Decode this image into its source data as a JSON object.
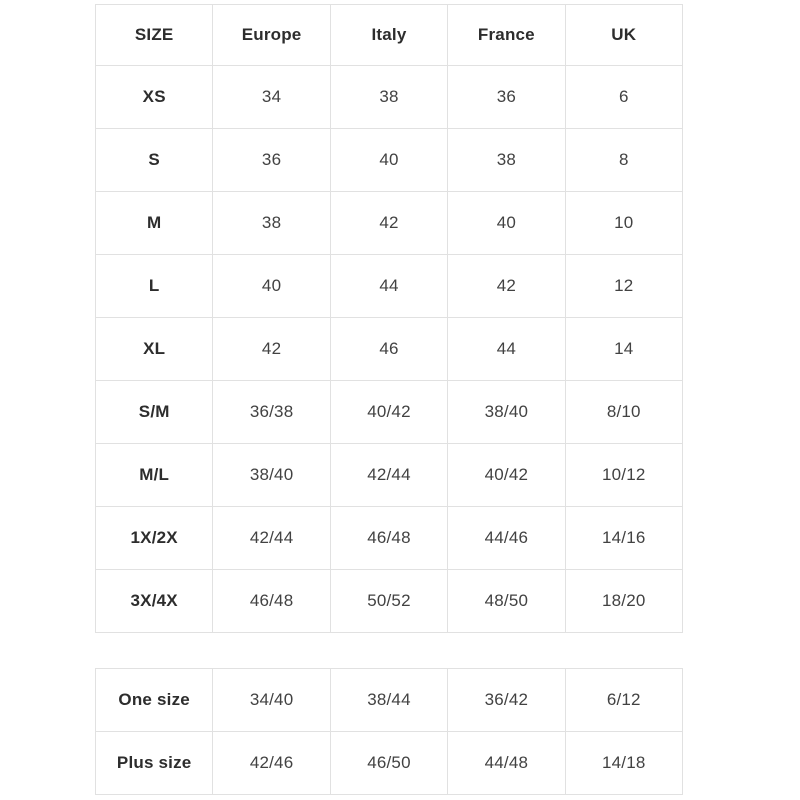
{
  "colors": {
    "background": "#ffffff",
    "border": "#e1e1e1",
    "header_text": "#2d2d2d",
    "value_text": "#424242"
  },
  "tables": [
    {
      "name": "size-conversion-table",
      "has_header": true,
      "columns": [
        "SIZE",
        "Europe",
        "Italy",
        "France",
        "UK"
      ],
      "rows": [
        [
          "XS",
          "34",
          "38",
          "36",
          "6"
        ],
        [
          "S",
          "36",
          "40",
          "38",
          "8"
        ],
        [
          "M",
          "38",
          "42",
          "40",
          "10"
        ],
        [
          "L",
          "40",
          "44",
          "42",
          "12"
        ],
        [
          "XL",
          "42",
          "46",
          "44",
          "14"
        ],
        [
          "S/M",
          "36/38",
          "40/42",
          "38/40",
          "8/10"
        ],
        [
          "M/L",
          "38/40",
          "42/44",
          "40/42",
          "10/12"
        ],
        [
          "1X/2X",
          "42/44",
          "46/48",
          "44/46",
          "14/16"
        ],
        [
          "3X/4X",
          "46/48",
          "50/52",
          "48/50",
          "18/20"
        ]
      ]
    },
    {
      "name": "special-sizes-table",
      "has_header": false,
      "columns": [],
      "rows": [
        [
          "One size",
          "34/40",
          "38/44",
          "36/42",
          "6/12"
        ],
        [
          "Plus size",
          "42/46",
          "46/50",
          "44/48",
          "14/18"
        ]
      ]
    }
  ]
}
